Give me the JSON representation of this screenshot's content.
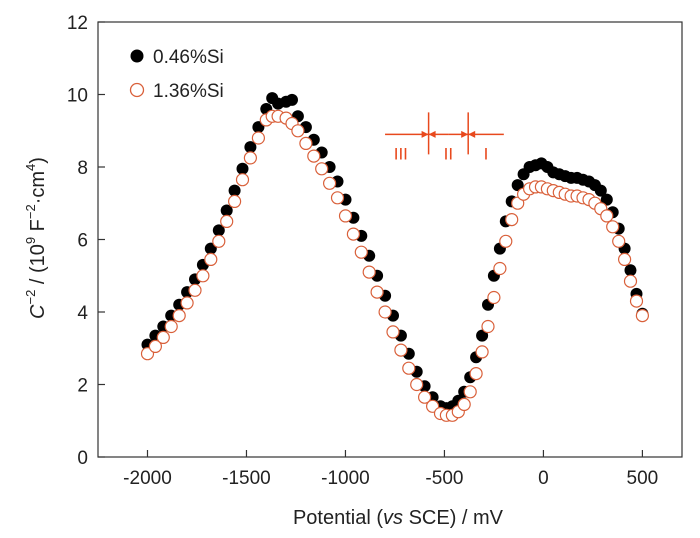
{
  "chart_data": {
    "type": "scatter",
    "title": "",
    "xlabel": {
      "prefix": "Potential (",
      "italic": "vs",
      "suffix": " SCE) /  mV"
    },
    "ylabel": {
      "c": "C",
      "exp1": "−2",
      "mid": " / (10",
      "exp9": "9",
      "unitF": " F",
      "exp2": "−2",
      "unitcm": "·cm",
      "exp4": "4",
      "close": ")"
    },
    "xlim": [
      -2250,
      700
    ],
    "ylim": [
      0,
      12
    ],
    "xticks": [
      -2000,
      -1500,
      -1000,
      -500,
      0,
      500
    ],
    "xtick_labels": [
      "-2000",
      "-1500",
      "-1000",
      "-500",
      "0",
      "500"
    ],
    "yticks": [
      0,
      2,
      4,
      6,
      8,
      10,
      12
    ],
    "ytick_labels": [
      "0",
      "2",
      "4",
      "6",
      "8",
      "10",
      "12"
    ],
    "legend": "top-left",
    "grid": false,
    "colors": {
      "series1": "#000000",
      "series2": "#d9603a",
      "annotation": "#e8491d",
      "axis": "#333333"
    },
    "series": [
      {
        "name": "0.46%Si",
        "marker": "filled-circle",
        "x": [
          -2000,
          -1960,
          -1920,
          -1880,
          -1840,
          -1800,
          -1760,
          -1720,
          -1680,
          -1640,
          -1600,
          -1560,
          -1520,
          -1480,
          -1440,
          -1400,
          -1370,
          -1340,
          -1300,
          -1270,
          -1240,
          -1200,
          -1160,
          -1120,
          -1080,
          -1040,
          -1000,
          -960,
          -920,
          -880,
          -840,
          -800,
          -760,
          -720,
          -680,
          -640,
          -600,
          -560,
          -520,
          -490,
          -460,
          -430,
          -400,
          -370,
          -340,
          -310,
          -280,
          -250,
          -220,
          -190,
          -160,
          -130,
          -100,
          -70,
          -40,
          -10,
          20,
          50,
          80,
          110,
          140,
          170,
          200,
          230,
          260,
          290,
          320,
          350,
          380,
          410,
          440,
          470,
          500
        ],
        "y": [
          3.1,
          3.35,
          3.6,
          3.9,
          4.2,
          4.55,
          4.9,
          5.3,
          5.75,
          6.25,
          6.8,
          7.35,
          7.95,
          8.55,
          9.1,
          9.6,
          9.9,
          9.75,
          9.8,
          9.85,
          9.4,
          9.1,
          8.75,
          8.4,
          8.0,
          7.6,
          7.1,
          6.6,
          6.1,
          5.55,
          5.0,
          4.45,
          3.9,
          3.35,
          2.85,
          2.35,
          1.95,
          1.65,
          1.4,
          1.35,
          1.4,
          1.55,
          1.8,
          2.2,
          2.75,
          3.35,
          4.2,
          5.0,
          5.75,
          6.5,
          7.05,
          7.5,
          7.8,
          8.0,
          8.05,
          8.1,
          8.0,
          7.85,
          7.8,
          7.75,
          7.7,
          7.7,
          7.65,
          7.6,
          7.5,
          7.35,
          7.1,
          6.75,
          6.3,
          5.75,
          5.15,
          4.5,
          3.95
        ]
      },
      {
        "name": "1.36%Si",
        "marker": "open-circle",
        "x": [
          -2000,
          -1960,
          -1920,
          -1880,
          -1840,
          -1800,
          -1760,
          -1720,
          -1680,
          -1640,
          -1600,
          -1560,
          -1520,
          -1480,
          -1440,
          -1400,
          -1370,
          -1340,
          -1300,
          -1270,
          -1240,
          -1200,
          -1160,
          -1120,
          -1080,
          -1040,
          -1000,
          -960,
          -920,
          -880,
          -840,
          -800,
          -760,
          -720,
          -680,
          -640,
          -600,
          -560,
          -520,
          -490,
          -460,
          -430,
          -400,
          -370,
          -340,
          -310,
          -280,
          -250,
          -220,
          -190,
          -160,
          -130,
          -100,
          -70,
          -40,
          -10,
          20,
          50,
          80,
          110,
          140,
          170,
          200,
          230,
          260,
          290,
          320,
          350,
          380,
          410,
          440,
          470,
          500
        ],
        "y": [
          2.85,
          3.05,
          3.3,
          3.6,
          3.9,
          4.25,
          4.6,
          5.0,
          5.45,
          5.95,
          6.5,
          7.05,
          7.65,
          8.25,
          8.8,
          9.3,
          9.4,
          9.4,
          9.35,
          9.2,
          9.0,
          8.65,
          8.3,
          7.95,
          7.55,
          7.15,
          6.65,
          6.15,
          5.65,
          5.1,
          4.55,
          4.0,
          3.45,
          2.95,
          2.45,
          2.0,
          1.65,
          1.4,
          1.2,
          1.15,
          1.15,
          1.25,
          1.45,
          1.8,
          2.3,
          2.9,
          3.6,
          4.4,
          5.2,
          5.95,
          6.55,
          7.0,
          7.25,
          7.4,
          7.45,
          7.45,
          7.4,
          7.35,
          7.3,
          7.25,
          7.2,
          7.2,
          7.15,
          7.1,
          7.0,
          6.85,
          6.65,
          6.35,
          5.95,
          5.45,
          4.85,
          4.3,
          3.9
        ]
      }
    ],
    "annotation": {
      "labels": [
        "III",
        "II",
        "I"
      ],
      "boundaries": [
        -580,
        -380
      ],
      "arrow_span": [
        -800,
        -200
      ],
      "y": 8.9
    }
  }
}
